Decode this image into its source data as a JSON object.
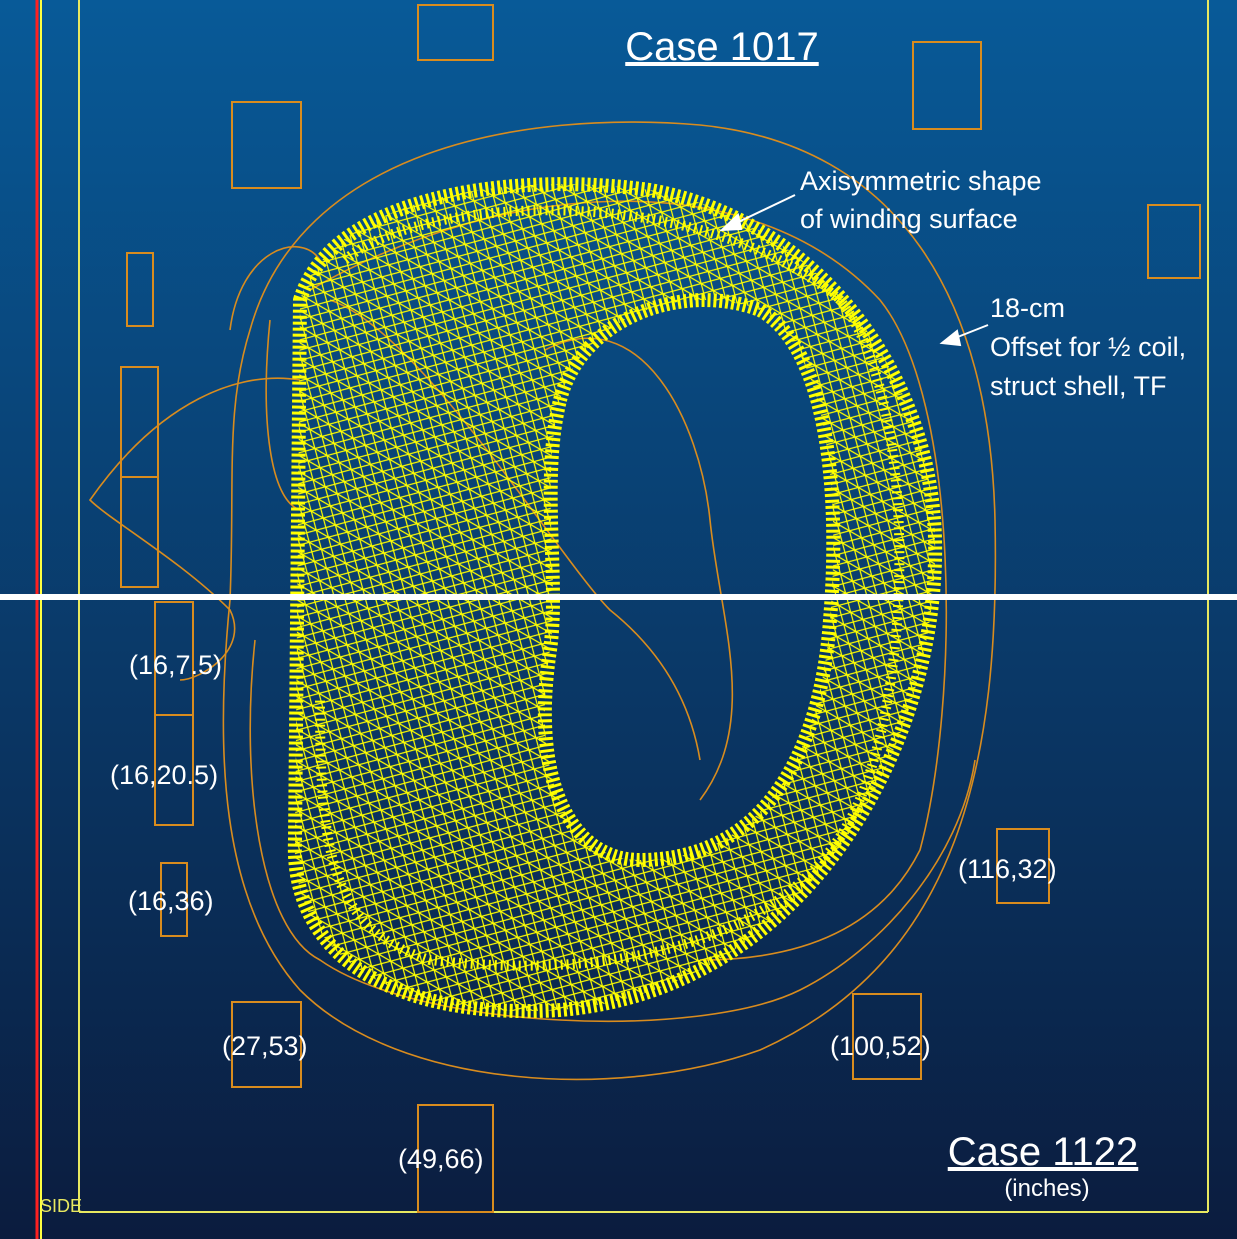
{
  "header": {
    "title": "Case 1017",
    "subtitle": "Case 1122",
    "units": "(inches)"
  },
  "view_label": "SIDE",
  "annotations": [
    {
      "lines": [
        "Axisymmetric shape",
        "of winding surface"
      ]
    },
    {
      "lines": [
        "18-cm",
        "Offset for ½ coil,",
        "struct shell, TF"
      ]
    }
  ],
  "coil_labels": [
    "(16,7.5)",
    "(16,20.5)",
    "(16,36)",
    "(116,32)",
    "(27,53)",
    "(100,52)",
    "(49,66)"
  ]
}
